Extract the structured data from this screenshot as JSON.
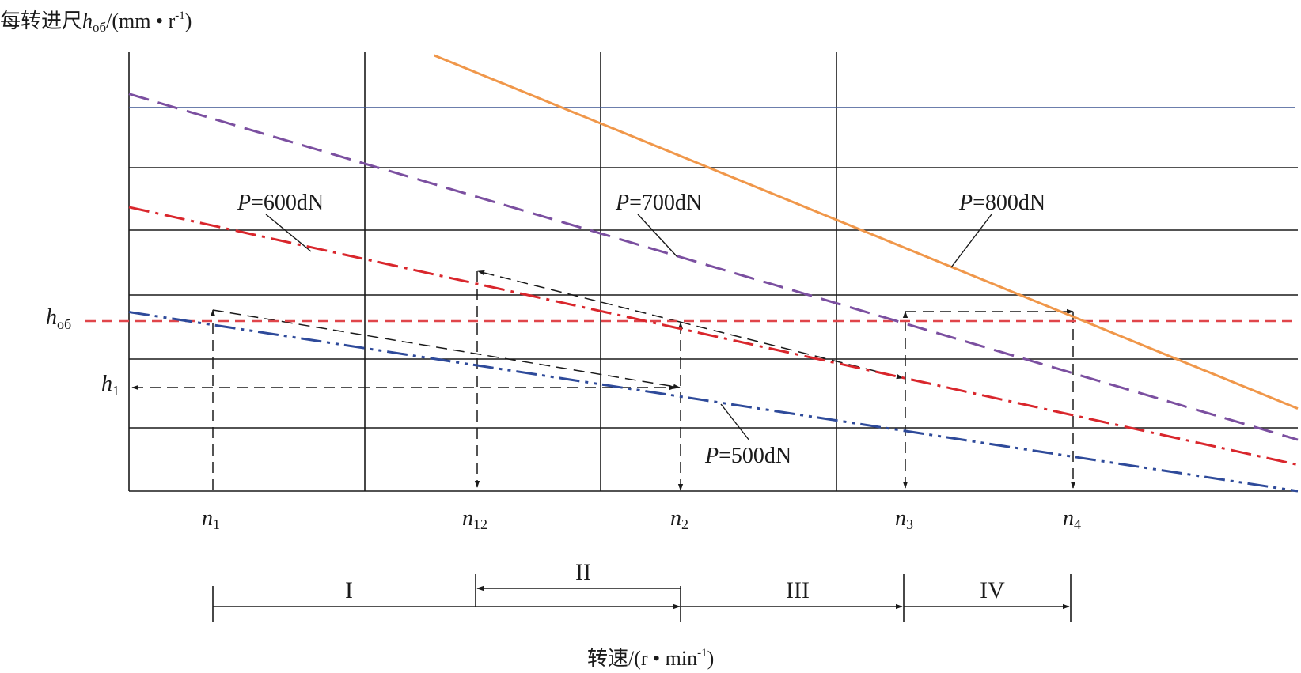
{
  "chart_data": {
    "type": "line",
    "title": "",
    "ylabel": {
      "prefix": "每转进尺",
      "symbol": "h",
      "subscript": "об",
      "unit_open": "/(mm • r",
      "unit_sup": "-1",
      "unit_close": ")"
    },
    "xlabel": {
      "prefix": "转速/(r • min",
      "sup": "-1",
      "close": ")"
    },
    "grid": true,
    "xlim": [
      0,
      100
    ],
    "ylim": [
      0,
      100
    ],
    "series": [
      {
        "name": "",
        "label": {
          "var": "P",
          "rest": "=500dN"
        },
        "style": "dash-dot-dot",
        "color": "#2e4a9a",
        "points": [
          [
            0,
            40.8
          ],
          [
            100,
            0
          ]
        ]
      },
      {
        "name": "",
        "label": {
          "var": "P",
          "rest": "=600dN"
        },
        "style": "dash-dot",
        "color": "#d9262c",
        "points": [
          [
            0,
            64.7
          ],
          [
            100,
            6
          ]
        ]
      },
      {
        "name": "",
        "label": {
          "var": "P",
          "rest": "=700dN"
        },
        "style": "dash",
        "color": "#7b4fa0",
        "points": [
          [
            0,
            90.5
          ],
          [
            100,
            11.7
          ]
        ]
      },
      {
        "name": "",
        "label": {
          "var": "P",
          "rest": "=800dN"
        },
        "style": "solid",
        "color": "#f0974a",
        "points": [
          [
            26.1,
            99.3
          ],
          [
            100,
            18.8
          ]
        ]
      }
    ],
    "reference_lines": [
      {
        "label": {
          "var": "h",
          "sub": "об"
        },
        "y": 38.8,
        "style": "dash",
        "color": "#e0454a"
      },
      {
        "label": {
          "var": "h",
          "sub": "1"
        },
        "y": 23.7,
        "style": "dash-arrow",
        "color": "#1a1a1a"
      },
      {
        "label": "",
        "y": 87.8,
        "style": "solid",
        "color": "#3b5391"
      }
    ],
    "x_markers": [
      {
        "var": "n",
        "sub": "1",
        "x": 7.1
      },
      {
        "var": "n",
        "sub": "12",
        "x": 29.5
      },
      {
        "var": "n",
        "sub": "2",
        "x": 47.1
      },
      {
        "var": "n",
        "sub": "3",
        "x": 66.2
      },
      {
        "var": "n",
        "sub": "4",
        "x": 80.5
      }
    ],
    "regions": [
      "I",
      "II",
      "III",
      "IV"
    ],
    "colors": {
      "axis": "#1a1a1a",
      "grid": "#1a1a1a",
      "arrows": "#1a1a1a"
    }
  }
}
